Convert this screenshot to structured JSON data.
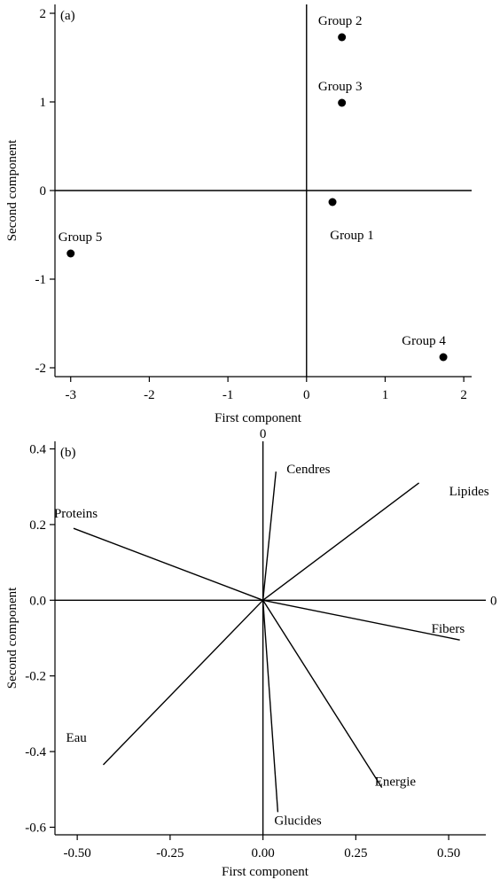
{
  "chart_data": [
    {
      "type": "scatter",
      "panel_label": "(a)",
      "xlabel": "First component",
      "ylabel": "Second component",
      "xlim": [
        -3.2,
        2.1
      ],
      "ylim": [
        -2.1,
        2.1
      ],
      "xticks": [
        -3,
        -2,
        -1,
        0,
        1,
        2
      ],
      "yticks": [
        -2,
        -1,
        0,
        1,
        2
      ],
      "xtick_labels": [
        "-3",
        "-2",
        "-1",
        "0",
        "1",
        "2"
      ],
      "ytick_labels": [
        "-2",
        "-1",
        "0",
        "1",
        "2"
      ],
      "reference_lines": [
        "x=0",
        "y=0"
      ],
      "points": [
        {
          "label": "Group 1",
          "x": 0.33,
          "y": -0.13
        },
        {
          "label": "Group 2",
          "x": 0.45,
          "y": 1.73
        },
        {
          "label": "Group 3",
          "x": 0.45,
          "y": 0.99
        },
        {
          "label": "Group 4",
          "x": 1.74,
          "y": -1.88
        },
        {
          "label": "Group 5",
          "x": -3.0,
          "y": -0.71
        }
      ]
    },
    {
      "type": "biplot_loadings",
      "panel_label": "(b)",
      "xlabel": "First component",
      "ylabel": "Second component",
      "xlim": [
        -0.56,
        0.6
      ],
      "ylim": [
        -0.62,
        0.42
      ],
      "xticks": [
        -0.5,
        -0.25,
        0,
        0.25,
        0.5
      ],
      "yticks": [
        -0.6,
        -0.4,
        -0.2,
        0,
        0.2,
        0.4
      ],
      "xtick_labels": [
        "-0.50",
        "-0.25",
        "0.00",
        "0.25",
        "0.50"
      ],
      "ytick_labels": [
        "-0.6",
        "-0.4",
        "-0.2",
        "0.0",
        "0.2",
        "0.4"
      ],
      "reference_line_labels": {
        "vertical": "0",
        "horizontal": "0"
      },
      "vectors": [
        {
          "label": "Proteins",
          "x": -0.51,
          "y": 0.19
        },
        {
          "label": "Cendres",
          "x": 0.035,
          "y": 0.34
        },
        {
          "label": "Lipides",
          "x": 0.42,
          "y": 0.31
        },
        {
          "label": "Fibers",
          "x": 0.53,
          "y": -0.105
        },
        {
          "label": "Energie",
          "x": 0.32,
          "y": -0.495
        },
        {
          "label": "Glucides",
          "x": 0.04,
          "y": -0.56
        },
        {
          "label": "Eau",
          "x": -0.43,
          "y": -0.435
        }
      ]
    }
  ]
}
